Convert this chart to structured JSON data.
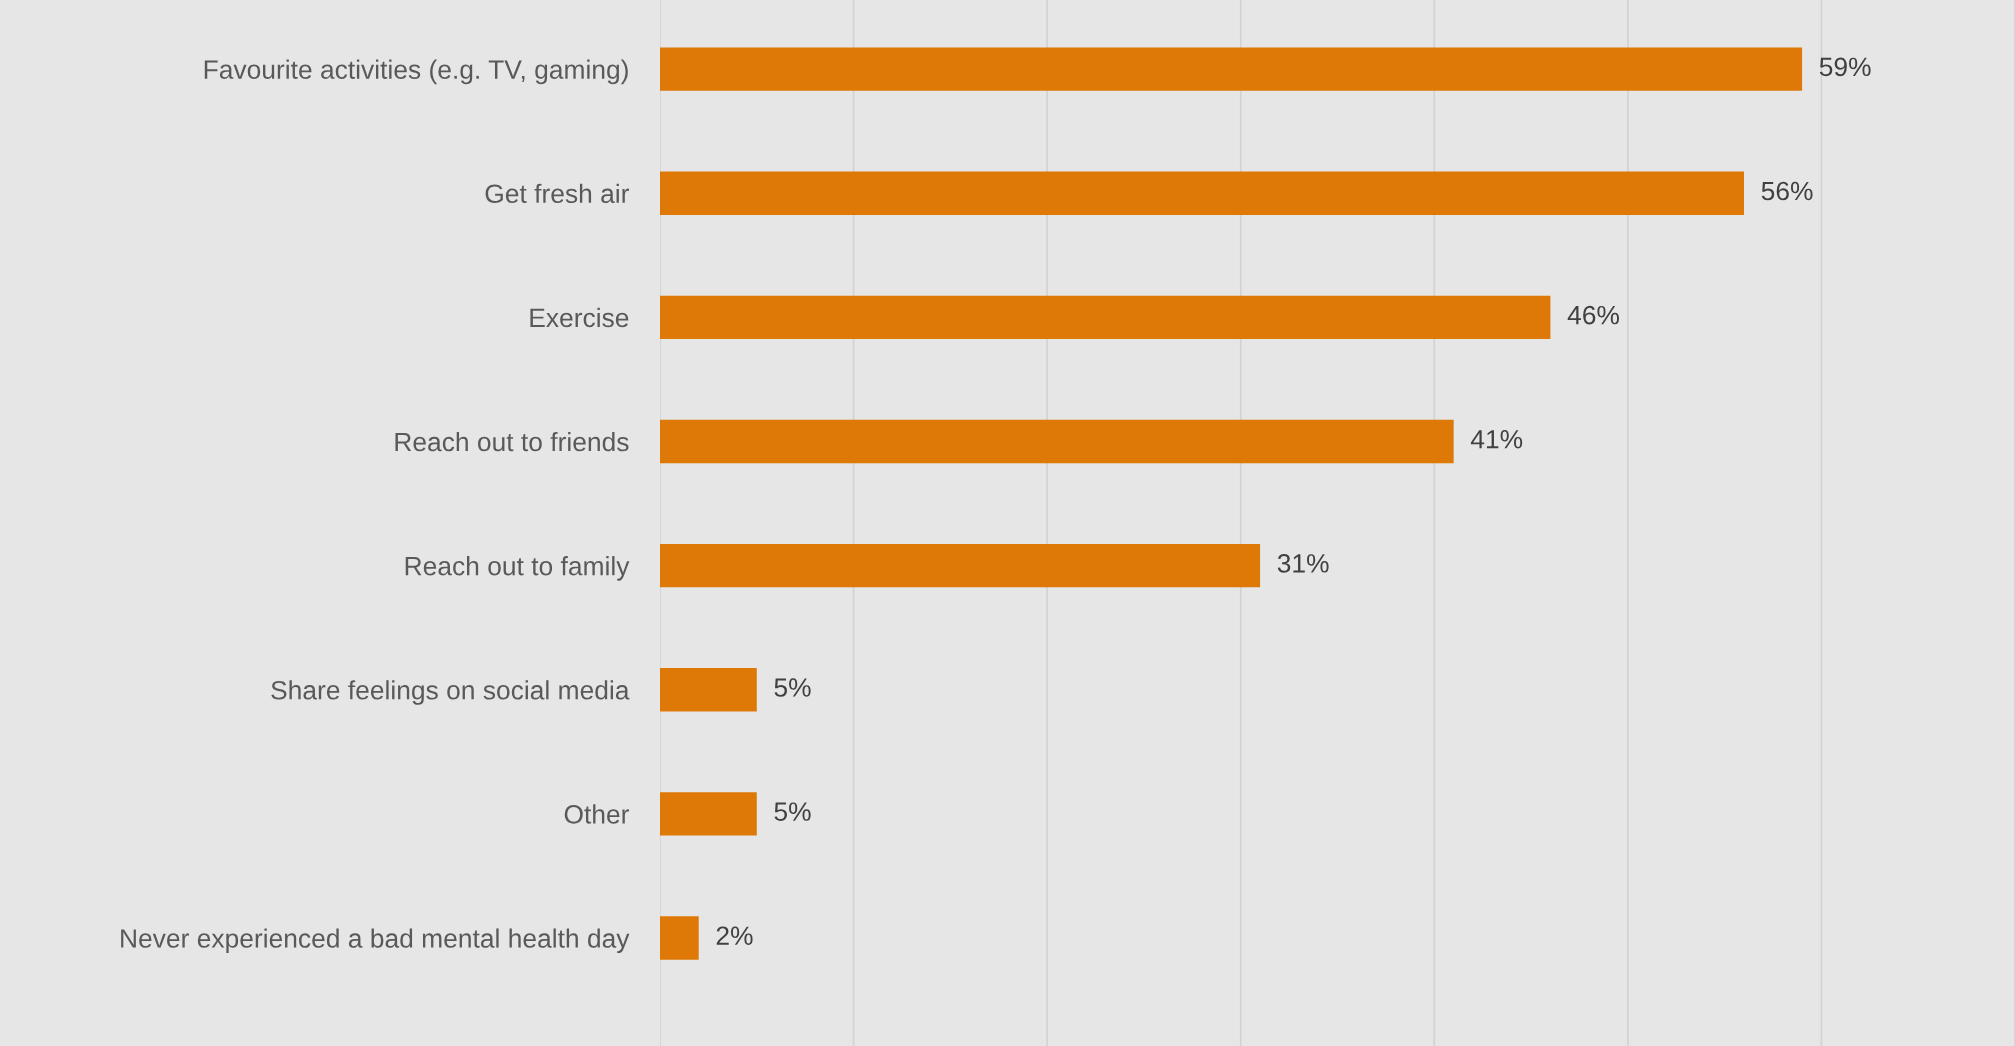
{
  "chart_data": {
    "type": "bar",
    "orientation": "horizontal",
    "categories": [
      "Favourite activities (e.g. TV, gaming)",
      "Get fresh air",
      "Exercise",
      "Reach out to friends",
      "Reach out to family",
      "Share feelings on social media",
      "Other",
      "Never experienced a bad mental health day"
    ],
    "values": [
      59,
      56,
      46,
      41,
      31,
      5,
      5,
      2
    ],
    "value_labels": [
      "59%",
      "56%",
      "46%",
      "41%",
      "31%",
      "5%",
      "5%",
      "2%"
    ],
    "color": "#de7806",
    "xlim": [
      0,
      70
    ],
    "xticks": [
      {
        "value": 0,
        "label": null
      },
      {
        "value": 10,
        "label": null
      },
      {
        "value": 20,
        "label": null
      },
      {
        "value": 30,
        "label": null
      },
      {
        "value": 40,
        "label": null
      },
      {
        "value": 50,
        "label": null
      },
      {
        "value": 60,
        "label": null
      },
      {
        "value": 70,
        "label": null
      }
    ],
    "grid": "x",
    "tick_labels": "y",
    "legend": false
  }
}
